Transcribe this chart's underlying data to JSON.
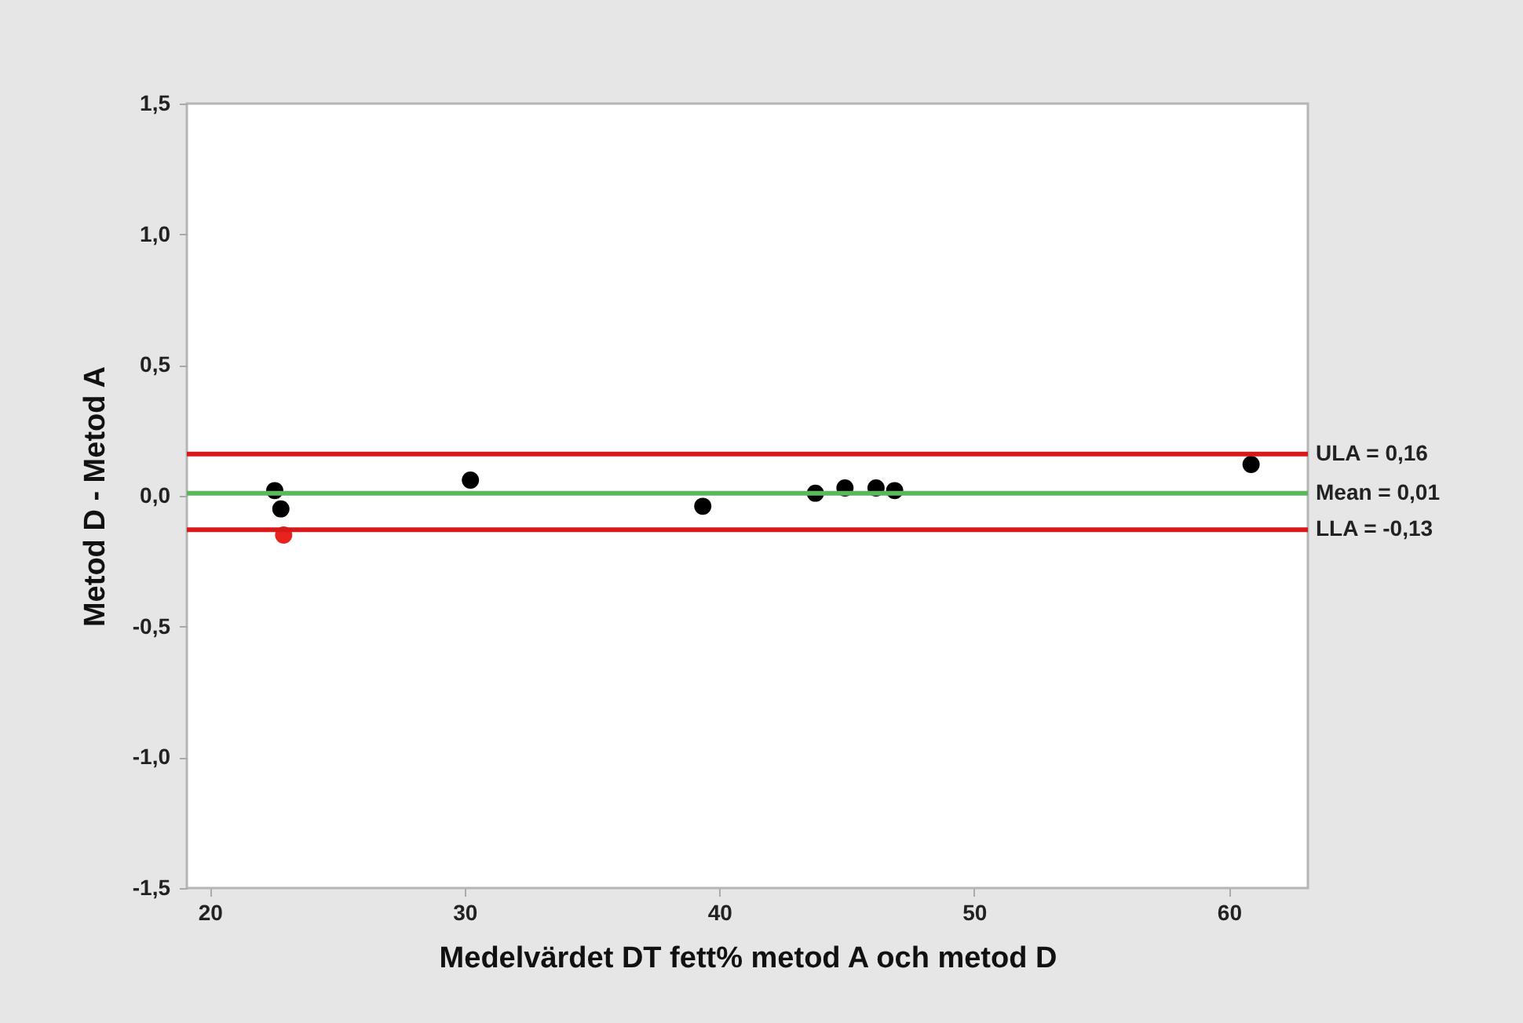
{
  "chart_data": {
    "type": "scatter",
    "xlabel": "Medelvärdet DT fett% metod A och metod D",
    "ylabel": "Metod D - Metod A",
    "xlim": [
      19.1,
      63.1
    ],
    "ylim": [
      -1.5,
      1.5
    ],
    "xticks": [
      20,
      30,
      40,
      50,
      60
    ],
    "yticks": [
      {
        "value": -1.5,
        "label": "-1,5"
      },
      {
        "value": -1,
        "label": "-1,0"
      },
      {
        "value": -0.5,
        "label": "-0,5"
      },
      {
        "value": 0,
        "label": "0,0"
      },
      {
        "value": 0.5,
        "label": "0,5"
      },
      {
        "value": 1,
        "label": "1,0"
      },
      {
        "value": 1.5,
        "label": "1,5"
      }
    ],
    "grid": false,
    "marker": "circle",
    "series": [
      {
        "color": "#000000",
        "x": [
          22.55,
          22.79,
          30.23,
          39.35,
          43.77,
          44.93,
          46.15,
          46.88,
          60.87
        ],
        "values": [
          0.02,
          -0.05,
          0.06,
          -0.04,
          0.01,
          0.03,
          0.03,
          0.02,
          0.12
        ]
      },
      {
        "color": "#e8231f",
        "x": [
          22.9
        ],
        "values": [
          -0.15
        ]
      }
    ],
    "ref_lines": [
      {
        "axis": "y",
        "value": 0.16,
        "label": "ULA = 0,16",
        "color": "#d7191c"
      },
      {
        "axis": "y",
        "value": 0.01,
        "label": "Mean = 0,01",
        "color": "#5cb85c"
      },
      {
        "axis": "y",
        "value": -0.13,
        "label": "LLA = -0,13",
        "color": "#d7191c"
      }
    ]
  }
}
